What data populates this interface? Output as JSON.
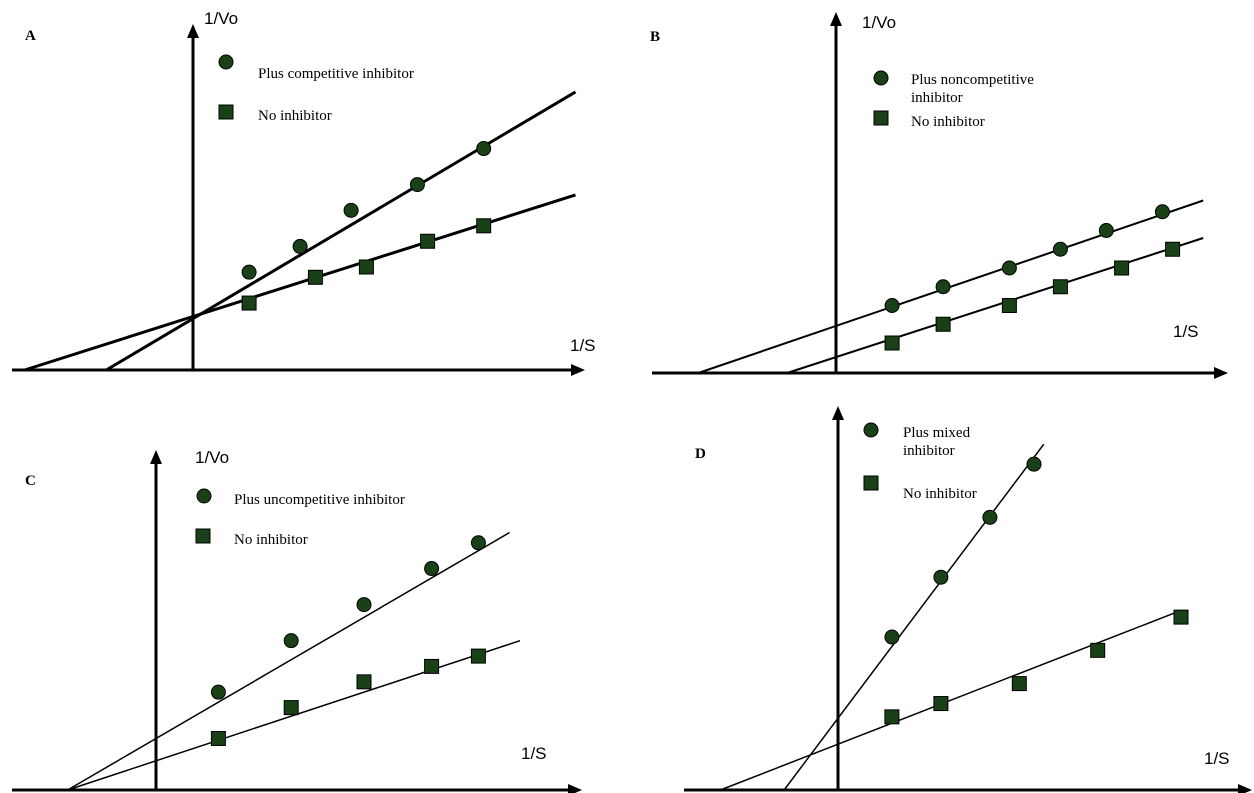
{
  "colors": {
    "marker": "#1a4018",
    "line": "#000000"
  },
  "chart_data": [
    {
      "panel": "A",
      "type": "scatter",
      "xlabel": "1/S",
      "ylabel": "1/Vo",
      "x_range": [
        -1.65,
        3.8
      ],
      "y_range": [
        0,
        2.6
      ],
      "series": [
        {
          "name": "Plus competitive inhibitor",
          "marker": "circle",
          "x": [
            0.55,
            1.05,
            1.55,
            2.2,
            2.85
          ],
          "y": [
            0.95,
            1.2,
            1.55,
            1.8,
            2.15
          ],
          "line": [
            -0.85,
            0.0,
            3.75,
            2.7
          ]
        },
        {
          "name": "No inhibitor",
          "marker": "square",
          "x": [
            0.55,
            1.2,
            1.7,
            2.3,
            2.85
          ],
          "y": [
            0.65,
            0.9,
            1.0,
            1.25,
            1.4
          ],
          "line": [
            -1.65,
            0.0,
            3.75,
            1.7
          ]
        }
      ]
    },
    {
      "panel": "B",
      "type": "scatter",
      "xlabel": "1/S",
      "ylabel": "1/Vo",
      "x_range": [
        -1.8,
        3.65
      ],
      "y_range": [
        0,
        3.3
      ],
      "series": [
        {
          "name": "Plus noncompetitive inhibitor",
          "marker": "circle",
          "x": [
            0.55,
            1.05,
            1.7,
            2.2,
            2.65,
            3.2
          ],
          "y": [
            0.9,
            1.15,
            1.4,
            1.65,
            1.9,
            2.15
          ],
          "line": [
            -1.35,
            0.0,
            3.6,
            2.3
          ]
        },
        {
          "name": "No inhibitor",
          "marker": "square",
          "x": [
            0.55,
            1.05,
            1.7,
            2.2,
            2.8,
            3.3
          ],
          "y": [
            0.4,
            0.65,
            0.9,
            1.15,
            1.4,
            1.65
          ],
          "line": [
            -0.48,
            0.0,
            3.6,
            1.8
          ]
        }
      ]
    },
    {
      "panel": "C",
      "type": "scatter",
      "xlabel": "1/S",
      "ylabel": "1/Vo",
      "x_range": [
        -1.2,
        3.3
      ],
      "y_range": [
        0,
        3.0
      ],
      "series": [
        {
          "name": "Plus uncompetitive inhibitor",
          "marker": "circle",
          "x": [
            0.6,
            1.3,
            2.0,
            2.65,
            3.1
          ],
          "y": [
            0.95,
            1.45,
            1.8,
            2.15,
            2.4
          ],
          "line": [
            -0.85,
            0.0,
            3.4,
            2.5
          ]
        },
        {
          "name": "No inhibitor",
          "marker": "square",
          "x": [
            0.6,
            1.3,
            2.0,
            2.65,
            3.1
          ],
          "y": [
            0.5,
            0.8,
            1.05,
            1.2,
            1.3
          ],
          "line": [
            -0.85,
            0.0,
            3.5,
            1.45
          ]
        }
      ]
    },
    {
      "panel": "D",
      "type": "scatter",
      "xlabel": "1/S",
      "ylabel": "1/Vo",
      "x_range": [
        -1.3,
        3.5
      ],
      "y_range": [
        0,
        2.9
      ],
      "series": [
        {
          "name": "Plus mixed inhibitor",
          "marker": "circle",
          "x": [
            0.55,
            1.05,
            1.55,
            2.0
          ],
          "y": [
            1.15,
            1.6,
            2.05,
            2.45
          ],
          "line": [
            -0.55,
            0.0,
            2.1,
            2.6
          ]
        },
        {
          "name": "No inhibitor",
          "marker": "square",
          "x": [
            0.55,
            1.05,
            1.85,
            2.65,
            3.5
          ],
          "y": [
            0.55,
            0.65,
            0.8,
            1.05,
            1.3
          ],
          "line": [
            -1.2,
            0.0,
            3.5,
            1.35
          ]
        }
      ]
    }
  ]
}
